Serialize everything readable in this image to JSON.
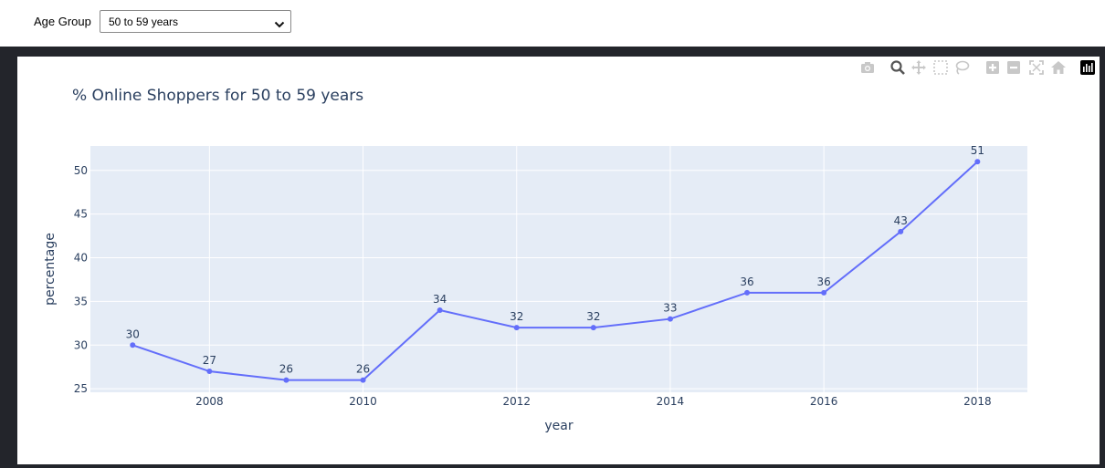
{
  "controls": {
    "age_label": "Age Group",
    "age_selected": "50 to 59 years"
  },
  "modebar": {
    "icons": [
      "camera-icon",
      "zoom-icon",
      "pan-icon",
      "box-select-icon",
      "lasso-icon",
      "zoom-in-icon",
      "zoom-out-icon",
      "autoscale-icon",
      "reset-axes-icon",
      "plotly-logo-icon"
    ]
  },
  "colors": {
    "line": "#636efa",
    "plot_bg": "#e5ecf6",
    "grid": "#ffffff",
    "text": "#2a3f5f",
    "frame": "#23252b"
  },
  "chart_data": {
    "type": "line",
    "title": "% Online Shoppers for 50 to 59 years",
    "xlabel": "year",
    "ylabel": "percentage",
    "x": [
      2007,
      2008,
      2009,
      2010,
      2011,
      2012,
      2013,
      2014,
      2015,
      2016,
      2017,
      2018
    ],
    "values": [
      30,
      27,
      26,
      26,
      34,
      32,
      32,
      33,
      36,
      36,
      43,
      51
    ],
    "data_labels": [
      "30",
      "27",
      "26",
      "26",
      "34",
      "32",
      "32",
      "33",
      "36",
      "36",
      "43",
      "51"
    ],
    "xticks": [
      2008,
      2010,
      2012,
      2014,
      2016,
      2018
    ],
    "xtick_labels": [
      "2008",
      "2010",
      "2012",
      "2014",
      "2016",
      "2018"
    ],
    "yticks": [
      25,
      30,
      35,
      40,
      45,
      50
    ],
    "ytick_labels": [
      "25",
      "30",
      "35",
      "40",
      "45",
      "50"
    ],
    "xlim": [
      2006.45,
      2018.65
    ],
    "ylim": [
      24.6,
      52.8
    ],
    "grid": true,
    "markers": true
  }
}
